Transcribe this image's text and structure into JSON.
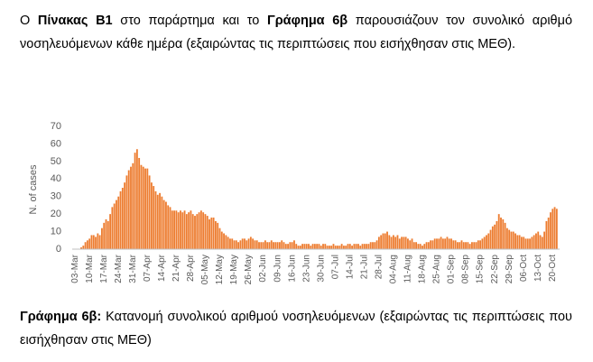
{
  "intro": [
    "Ο",
    "Πίνακας Β1",
    "στο παράρτημα και το",
    "Γράφημα 6β",
    "παρουσιάζουν τον συνολικό αριθμό νοσηλευόμενων κάθε ημέρα (εξαιρώντας τις περιπτώσεις που εισήχθησαν στις ΜΕΘ)."
  ],
  "caption": {
    "label": "Γράφημα 6β:",
    "text": "Κατανομή συνολικού αριθμού νοσηλευόμενων (εξαιρώντας τις περιπτώσεις που εισήχθησαν στις ΜΕΘ)"
  },
  "chart_data": {
    "type": "bar",
    "ylabel": "N. of cases",
    "color": "#ed7d31",
    "ylim": [
      0,
      70
    ],
    "yticks": [
      0,
      10,
      20,
      30,
      40,
      50,
      60,
      70
    ],
    "grid": false,
    "categories": [
      "03-Mar",
      null,
      null,
      null,
      null,
      null,
      null,
      "10-Mar",
      null,
      null,
      null,
      null,
      null,
      null,
      "17-Mar",
      null,
      null,
      null,
      null,
      null,
      null,
      "24-Mar",
      null,
      null,
      null,
      null,
      null,
      null,
      "31-Mar",
      null,
      null,
      null,
      null,
      null,
      null,
      "07-Apr",
      null,
      null,
      null,
      null,
      null,
      null,
      "14-Apr",
      null,
      null,
      null,
      null,
      null,
      null,
      "21-Apr",
      null,
      null,
      null,
      null,
      null,
      null,
      "28-Apr",
      null,
      null,
      null,
      null,
      null,
      null,
      "05-May",
      null,
      null,
      null,
      null,
      null,
      null,
      "12-May",
      null,
      null,
      null,
      null,
      null,
      null,
      "19-May",
      null,
      null,
      null,
      null,
      null,
      null,
      "26-May",
      null,
      null,
      null,
      null,
      null,
      null,
      "02-Jun",
      null,
      null,
      null,
      null,
      null,
      null,
      "09-Jun",
      null,
      null,
      null,
      null,
      null,
      null,
      "16-Jun",
      null,
      null,
      null,
      null,
      null,
      null,
      "23-Jun",
      null,
      null,
      null,
      null,
      null,
      null,
      "30-Jun",
      null,
      null,
      null,
      null,
      null,
      null,
      "07-Jul",
      null,
      null,
      null,
      null,
      null,
      null,
      "14-Jul",
      null,
      null,
      null,
      null,
      null,
      null,
      "21-Jul",
      null,
      null,
      null,
      null,
      null,
      null,
      "28-Jul",
      null,
      null,
      null,
      null,
      null,
      null,
      "04-Aug",
      null,
      null,
      null,
      null,
      null,
      null,
      "11-Aug",
      null,
      null,
      null,
      null,
      null,
      null,
      "18-Aug",
      null,
      null,
      null,
      null,
      null,
      null,
      "25-Aug",
      null,
      null,
      null,
      null,
      null,
      null,
      "01-Sep",
      null,
      null,
      null,
      null,
      null,
      null,
      "08-Sep",
      null,
      null,
      null,
      null,
      null,
      null,
      "15-Sep",
      null,
      null,
      null,
      null,
      null,
      null,
      "22-Sep",
      null,
      null,
      null,
      null,
      null,
      null,
      "29-Sep",
      null,
      null,
      null,
      null,
      null,
      null,
      "06-Oct",
      null,
      null,
      null,
      null,
      null,
      null,
      "13-Oct",
      null,
      null,
      null,
      null,
      null,
      null,
      "20-Oct",
      null,
      null
    ],
    "values": [
      0,
      0,
      0,
      1,
      2,
      4,
      5,
      6,
      8,
      8,
      7,
      9,
      8,
      12,
      15,
      17,
      16,
      20,
      24,
      26,
      28,
      30,
      33,
      35,
      38,
      42,
      45,
      47,
      49,
      55,
      57,
      52,
      48,
      47,
      46,
      46,
      42,
      38,
      36,
      33,
      31,
      32,
      30,
      28,
      27,
      25,
      24,
      22,
      22,
      22,
      21,
      22,
      21,
      22,
      20,
      21,
      22,
      20,
      19,
      20,
      21,
      22,
      21,
      20,
      19,
      17,
      18,
      18,
      16,
      15,
      12,
      10,
      9,
      8,
      7,
      6,
      6,
      5,
      5,
      4,
      5,
      6,
      6,
      5,
      6,
      7,
      6,
      5,
      5,
      4,
      4,
      4,
      5,
      4,
      4,
      5,
      4,
      4,
      4,
      4,
      5,
      4,
      3,
      3,
      4,
      4,
      5,
      3,
      2,
      2,
      3,
      3,
      3,
      3,
      2,
      3,
      3,
      3,
      3,
      2,
      3,
      3,
      2,
      2,
      2,
      3,
      2,
      2,
      2,
      3,
      2,
      2,
      3,
      3,
      2,
      3,
      3,
      3,
      2,
      3,
      3,
      3,
      3,
      4,
      4,
      4,
      5,
      7,
      8,
      9,
      9,
      10,
      8,
      7,
      8,
      7,
      8,
      6,
      7,
      7,
      7,
      6,
      5,
      6,
      4,
      4,
      3,
      3,
      2,
      3,
      4,
      4,
      5,
      5,
      6,
      6,
      6,
      7,
      6,
      6,
      7,
      6,
      6,
      5,
      5,
      4,
      4,
      5,
      4,
      4,
      4,
      3,
      4,
      4,
      4,
      5,
      5,
      6,
      7,
      8,
      9,
      11,
      13,
      14,
      16,
      20,
      18,
      17,
      15,
      12,
      11,
      10,
      10,
      9,
      8,
      8,
      7,
      7,
      6,
      6,
      6,
      7,
      8,
      9,
      10,
      8,
      7,
      10,
      16,
      18,
      21,
      23,
      24,
      23
    ]
  }
}
